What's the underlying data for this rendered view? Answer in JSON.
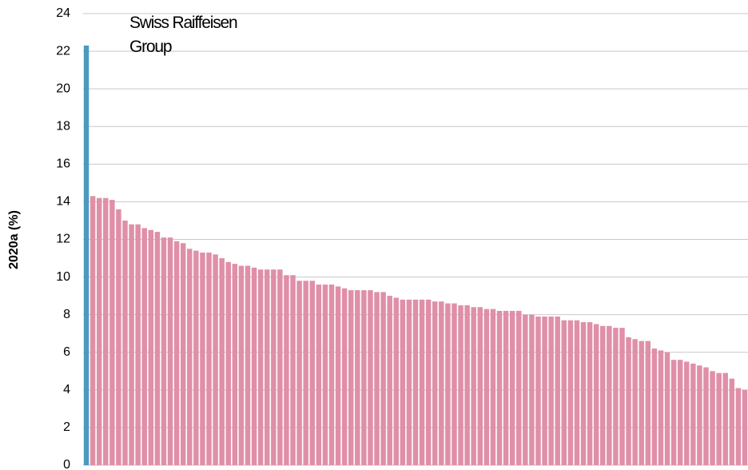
{
  "chart_data": {
    "type": "bar",
    "y_label": "2020a (%)",
    "annotation": "Swiss Raiffeisen Group",
    "categories": [
      null,
      null,
      null,
      null,
      null,
      null,
      null,
      null,
      null,
      null,
      null,
      null,
      null,
      null,
      null,
      null,
      null,
      null,
      null,
      null,
      null,
      null,
      null,
      null,
      null,
      null,
      null,
      null,
      null,
      null,
      null,
      null,
      null,
      null,
      null,
      null,
      null,
      null,
      null,
      null,
      null,
      null,
      null,
      null,
      null,
      null,
      null,
      null,
      null,
      null,
      null,
      null,
      null,
      null,
      null,
      null,
      null,
      null,
      null,
      null,
      null,
      null,
      null,
      null,
      null,
      null,
      null,
      null,
      null,
      null,
      null,
      null,
      null,
      null,
      null,
      null,
      null,
      null,
      null,
      null,
      null,
      null,
      null,
      null,
      null,
      null,
      null,
      null,
      null,
      null,
      null,
      null,
      null,
      null,
      null,
      null,
      null,
      null,
      null,
      null,
      null,
      null,
      null
    ],
    "values": [
      22.3,
      14.3,
      14.2,
      14.2,
      14.1,
      13.6,
      13.0,
      12.8,
      12.8,
      12.6,
      12.5,
      12.4,
      12.1,
      12.1,
      11.9,
      11.8,
      11.5,
      11.4,
      11.3,
      11.3,
      11.2,
      11.0,
      10.8,
      10.7,
      10.6,
      10.6,
      10.5,
      10.4,
      10.4,
      10.4,
      10.4,
      10.1,
      10.1,
      9.8,
      9.8,
      9.8,
      9.6,
      9.6,
      9.6,
      9.5,
      9.4,
      9.3,
      9.3,
      9.3,
      9.3,
      9.2,
      9.2,
      9.0,
      8.9,
      8.8,
      8.8,
      8.8,
      8.8,
      8.8,
      8.7,
      8.7,
      8.6,
      8.6,
      8.5,
      8.5,
      8.4,
      8.4,
      8.3,
      8.3,
      8.2,
      8.2,
      8.2,
      8.2,
      8.0,
      8.0,
      7.9,
      7.9,
      7.9,
      7.9,
      7.7,
      7.7,
      7.7,
      7.6,
      7.6,
      7.5,
      7.4,
      7.4,
      7.3,
      7.3,
      6.8,
      6.7,
      6.6,
      6.6,
      6.2,
      6.1,
      6.0,
      5.6,
      5.6,
      5.5,
      5.4,
      5.3,
      5.2,
      5.0,
      4.9,
      4.9,
      4.6,
      4.1,
      4.0
    ],
    "color": "#e08fa8",
    "highlight": {
      "category_index": 0,
      "color": "#4a9bbf"
    },
    "ylim": [
      0,
      24
    ],
    "yticks": [
      0,
      2,
      4,
      6,
      8,
      10,
      12,
      14,
      16,
      18,
      20,
      22,
      24
    ],
    "grid": true
  }
}
